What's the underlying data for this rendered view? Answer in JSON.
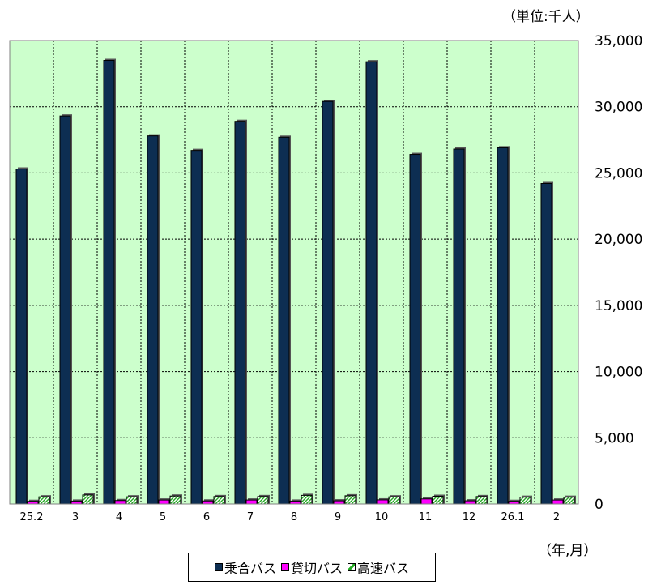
{
  "unit_label": "（単位:千人）",
  "x_unit_label": "（年,月）",
  "chart_data": {
    "type": "bar",
    "categories": [
      "25.2",
      "3",
      "4",
      "5",
      "6",
      "7",
      "8",
      "9",
      "10",
      "11",
      "12",
      "26.1",
      "2"
    ],
    "series": [
      {
        "name": "乗合バス",
        "color": "#0d2e52",
        "values": [
          25300,
          29300,
          33500,
          27800,
          26700,
          28900,
          27700,
          30400,
          33400,
          26400,
          26800,
          26900,
          24200
        ]
      },
      {
        "name": "貸切バス",
        "color": "#ff00ff",
        "values": [
          200,
          220,
          260,
          300,
          230,
          300,
          220,
          240,
          310,
          380,
          240,
          200,
          300
        ]
      },
      {
        "name": "高速バス",
        "color": "#22aa22",
        "values": [
          540,
          680,
          540,
          600,
          560,
          560,
          650,
          620,
          540,
          580,
          560,
          510,
          510
        ]
      }
    ],
    "ylim": [
      0,
      35000
    ],
    "yticks": [
      "0",
      "5,000",
      "10,000",
      "15,000",
      "20,000",
      "25,000",
      "30,000",
      "35,000"
    ],
    "plot_background": "#ccffcc",
    "grid": true,
    "legend_position": "bottom"
  }
}
